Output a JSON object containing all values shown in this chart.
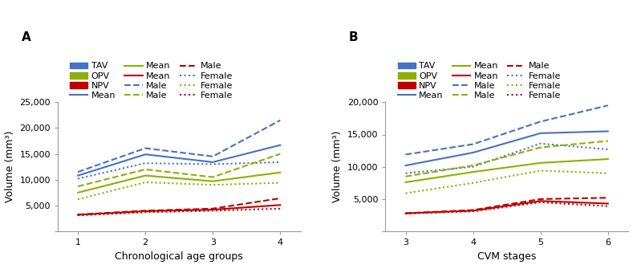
{
  "panel_A": {
    "x": [
      1,
      2,
      3,
      4
    ],
    "xlabel": "Chronological age groups",
    "ylabel": "Volume (mm³)",
    "ylim": [
      0,
      25000
    ],
    "yticks": [
      0,
      5000,
      10000,
      15000,
      20000,
      25000
    ],
    "ytick_labels": [
      "",
      "5,000",
      "10,000",
      "15,000",
      "20,000",
      "25,000"
    ],
    "TAV_mean": [
      10800,
      14900,
      13400,
      16700
    ],
    "TAV_male": [
      11500,
      16100,
      14500,
      21500
    ],
    "TAV_female": [
      10200,
      13200,
      13000,
      13400
    ],
    "OPV_mean": [
      7500,
      10800,
      9700,
      11400
    ],
    "OPV_male": [
      8700,
      12000,
      10500,
      15000
    ],
    "OPV_female": [
      6200,
      9500,
      9000,
      9400
    ],
    "NPV_mean": [
      3200,
      3900,
      4200,
      5100
    ],
    "NPV_male": [
      3250,
      4000,
      4400,
      6400
    ],
    "NPV_female": [
      3100,
      3700,
      4000,
      4400
    ]
  },
  "panel_B": {
    "x": [
      3,
      4,
      5,
      6
    ],
    "xlabel": "CVM stages",
    "ylabel": "Volume (mm³)",
    "ylim": [
      0,
      20000
    ],
    "yticks": [
      0,
      5000,
      10000,
      15000,
      20000
    ],
    "ytick_labels": [
      "",
      "5,000",
      "10,000",
      "15,000",
      "20,000"
    ],
    "TAV_mean": [
      10200,
      12200,
      15200,
      15500
    ],
    "TAV_male": [
      11900,
      13500,
      17000,
      19500
    ],
    "TAV_female": [
      9000,
      10000,
      13600,
      12700
    ],
    "OPV_mean": [
      7600,
      9200,
      10600,
      11200
    ],
    "OPV_male": [
      8500,
      10200,
      13000,
      14000
    ],
    "OPV_female": [
      5900,
      7500,
      9400,
      9000
    ],
    "NPV_mean": [
      2800,
      3200,
      4700,
      4300
    ],
    "NPV_male": [
      2800,
      3300,
      5000,
      5200
    ],
    "NPV_female": [
      2750,
      3100,
      4500,
      3900
    ]
  },
  "TAV_color": "#4472C4",
  "OPV_color": "#8DB000",
  "NPV_color": "#C00000",
  "label_fontsize": 9,
  "tick_fontsize": 8,
  "legend_fontsize": 8,
  "line_width": 1.5
}
